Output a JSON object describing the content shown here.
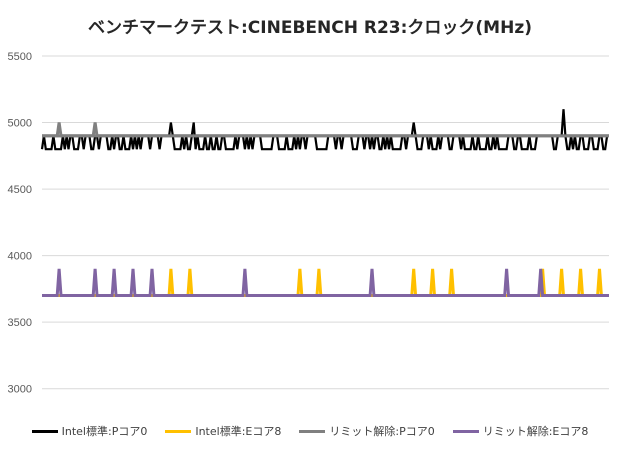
{
  "chart_data": {
    "type": "line",
    "title": "ベンチマークテスト:CINEBENCH R23:クロック(MHz)",
    "ylim": [
      2900,
      5500
    ],
    "yticks": [
      3000,
      3500,
      4000,
      4500,
      5000,
      5500
    ],
    "ytick_labels": [
      "3000",
      "3500",
      "4000",
      "4500",
      "5000",
      "5500"
    ],
    "grid": "horizontal",
    "legend_position": "bottom",
    "x_count": 300,
    "series": [
      {
        "name": "Intel標準:Pコア0",
        "color": "#000000",
        "base": 4800,
        "high": 4900,
        "spike_value": 5000,
        "spikes": [
          68,
          80,
          196
        ],
        "spikes_alt": {
          "value": 5100,
          "at": [
            275
          ]
        }
      },
      {
        "name": "Intel標準:Eコア8",
        "color": "#ffc000",
        "base": 3700,
        "spike_value": 3900,
        "spikes": [
          68,
          78,
          136,
          146,
          196,
          206,
          216,
          264,
          274,
          284,
          294
        ]
      },
      {
        "name": "リミット解除:Pコア0",
        "color": "#808080",
        "base": 4900,
        "spike_value": 5000,
        "spikes": [
          9,
          28
        ]
      },
      {
        "name": "リミット解除:Eコア8",
        "color": "#8064a2",
        "base": 3700,
        "spike_value": 3900,
        "spikes": [
          9,
          28,
          38,
          48,
          58,
          107,
          174,
          245,
          263
        ]
      }
    ]
  }
}
